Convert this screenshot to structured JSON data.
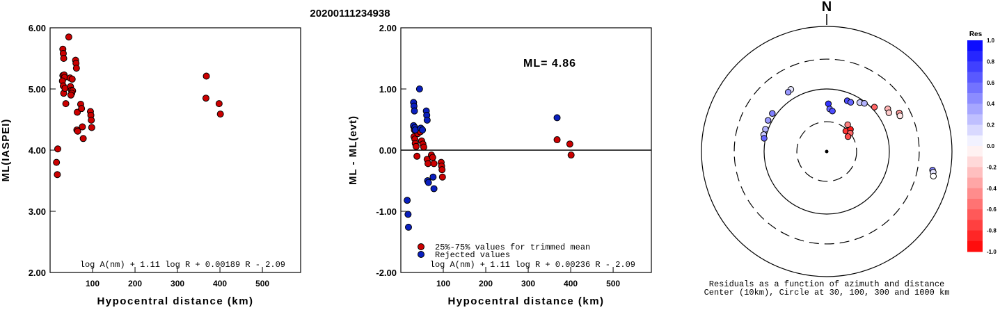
{
  "title": "20200111234938",
  "chart_data": [
    {
      "type": "scatter",
      "xlabel": "Hypocentral distance (km)",
      "ylabel": "ML(IASPEI)",
      "xlim": [
        0,
        590
      ],
      "ylim": [
        2.0,
        6.0
      ],
      "xticks": [
        "100",
        "200",
        "300",
        "400",
        "500"
      ],
      "xtick_values": [
        100,
        200,
        300,
        400,
        500
      ],
      "yticks": [
        "2.00",
        "3.00",
        "4.00",
        "5.00",
        "6.00"
      ],
      "ytick_values": [
        2.0,
        3.0,
        4.0,
        5.0,
        6.0
      ],
      "formula": "log A(nm) + 1.11 log R + 0.00189 R - 2.09",
      "marker_color": "#cc0000",
      "points": [
        [
          15,
          3.8
        ],
        [
          17,
          3.6
        ],
        [
          18,
          4.02
        ],
        [
          30,
          5.65
        ],
        [
          31,
          5.58
        ],
        [
          32,
          5.5
        ],
        [
          30,
          5.22
        ],
        [
          33,
          5.23
        ],
        [
          34,
          5.19
        ],
        [
          29,
          5.13
        ],
        [
          31,
          5.05
        ],
        [
          32,
          4.93
        ],
        [
          35,
          5.01
        ],
        [
          37,
          4.76
        ],
        [
          44,
          5.85
        ],
        [
          47,
          5.18
        ],
        [
          52,
          5.16
        ],
        [
          48,
          5.04
        ],
        [
          50,
          4.98
        ],
        [
          53,
          4.97
        ],
        [
          51,
          4.93
        ],
        [
          49,
          4.9
        ],
        [
          60,
          5.47
        ],
        [
          61,
          5.42
        ],
        [
          62,
          5.34
        ],
        [
          64,
          4.62
        ],
        [
          63,
          4.33
        ],
        [
          65,
          4.31
        ],
        [
          72,
          4.75
        ],
        [
          74,
          4.68
        ],
        [
          76,
          4.38
        ],
        [
          78,
          4.19
        ],
        [
          95,
          4.63
        ],
        [
          96,
          4.57
        ],
        [
          97,
          4.49
        ],
        [
          98,
          4.37
        ],
        [
          368,
          5.21
        ],
        [
          367,
          4.85
        ],
        [
          398,
          4.76
        ],
        [
          401,
          4.59
        ]
      ]
    },
    {
      "type": "scatter",
      "xlabel": "Hypocentral distance (km)",
      "ylabel": "ML - ML(evt)",
      "xlim": [
        0,
        590
      ],
      "ylim": [
        -2.0,
        2.0
      ],
      "xticks": [
        "100",
        "200",
        "300",
        "400",
        "500"
      ],
      "xtick_values": [
        100,
        200,
        300,
        400,
        500
      ],
      "yticks": [
        "-2.00",
        "-1.00",
        "0.00",
        "1.00",
        "2.00"
      ],
      "ytick_values": [
        -2.0,
        -1.0,
        0.0,
        1.0,
        2.0
      ],
      "zero_line": 0.0,
      "annotation": "ML= 4.86",
      "formula": "log A(nm) + 1.11 log R + 0.00236 R - 2.09",
      "legend": [
        {
          "label": "25%-75% values for trimmed mean",
          "color": "#cc0000"
        },
        {
          "label": "Rejected values",
          "color": "#0a1fbf"
        }
      ],
      "series": [
        {
          "color": "#cc0000",
          "points": [
            [
              30,
              0.39
            ],
            [
              32,
              0.33
            ],
            [
              31,
              0.22
            ],
            [
              33,
              0.18
            ],
            [
              34,
              0.11
            ],
            [
              36,
              0.06
            ],
            [
              38,
              -0.1
            ],
            [
              40,
              0.27
            ],
            [
              46,
              0.3
            ],
            [
              49,
              0.15
            ],
            [
              52,
              0.1
            ],
            [
              54,
              0.05
            ],
            [
              62,
              -0.15
            ],
            [
              64,
              -0.22
            ],
            [
              72,
              -0.08
            ],
            [
              75,
              -0.12
            ],
            [
              78,
              -0.22
            ],
            [
              95,
              -0.2
            ],
            [
              96,
              -0.26
            ],
            [
              97,
              -0.32
            ],
            [
              98,
              -0.44
            ],
            [
              368,
              0.17
            ],
            [
              398,
              0.1
            ],
            [
              401,
              -0.08
            ]
          ]
        },
        {
          "color": "#0a1fbf",
          "points": [
            [
              15,
              -0.82
            ],
            [
              17,
              -1.05
            ],
            [
              18,
              -1.26
            ],
            [
              30,
              0.78
            ],
            [
              31,
              0.72
            ],
            [
              32,
              0.64
            ],
            [
              30,
              0.4
            ],
            [
              33,
              0.37
            ],
            [
              34,
              0.33
            ],
            [
              44,
              1.0
            ],
            [
              47,
              0.36
            ],
            [
              51,
              0.33
            ],
            [
              60,
              0.64
            ],
            [
              61,
              0.57
            ],
            [
              62,
              0.49
            ],
            [
              63,
              -0.5
            ],
            [
              65,
              -0.53
            ],
            [
              76,
              -0.44
            ],
            [
              78,
              -0.63
            ],
            [
              368,
              0.53
            ]
          ]
        }
      ]
    },
    {
      "type": "scatter",
      "subtype": "polar-residuals",
      "north_label": "N",
      "caption_line1": "Residuals as a function of azimuth and distance",
      "caption_line2": "Center (10km), Circle at 30, 100, 300 and 1000 km",
      "colorbar_title": "Res",
      "colorbar_ticks": [
        "1.0",
        "0.8",
        "0.6",
        "0.4",
        "0.2",
        "0.0",
        "-0.2",
        "-0.4",
        "-0.6",
        "-0.8",
        "-1.0"
      ],
      "colorbar_values": [
        1.0,
        0.8,
        0.6,
        0.4,
        0.2,
        0.0,
        -0.2,
        -0.4,
        -0.6,
        -0.8,
        -1.0
      ],
      "circles_km": [
        30,
        100,
        300,
        1000
      ],
      "dashed_circles_km": [
        30,
        300
      ],
      "stations": [
        {
          "az": 43,
          "dist": 28,
          "res": -0.8
        },
        {
          "az": 47,
          "dist": 33,
          "res": -0.9
        },
        {
          "az": 52,
          "dist": 30,
          "res": -0.6
        },
        {
          "az": 55,
          "dist": 26,
          "res": -0.7
        },
        {
          "az": 38,
          "dist": 35,
          "res": -0.5
        },
        {
          "az": 2,
          "dist": 58,
          "res": 0.8
        },
        {
          "az": 4,
          "dist": 48,
          "res": 0.6
        },
        {
          "az": 8,
          "dist": 45,
          "res": 0.7
        },
        {
          "az": 22,
          "dist": 75,
          "res": 0.7
        },
        {
          "az": 26,
          "dist": 75,
          "res": 0.6
        },
        {
          "az": 34,
          "dist": 88,
          "res": 0.2
        },
        {
          "az": 38,
          "dist": 95,
          "res": 0.3
        },
        {
          "az": 47,
          "dist": 110,
          "res": -0.6
        },
        {
          "az": 55,
          "dist": 155,
          "res": -0.3
        },
        {
          "az": 58,
          "dist": 148,
          "res": -0.2
        },
        {
          "az": 62,
          "dist": 205,
          "res": -0.4
        },
        {
          "az": 64,
          "dist": 200,
          "res": -0.1
        },
        {
          "az": 330,
          "dist": 140,
          "res": 0.1
        },
        {
          "az": 327,
          "dist": 135,
          "res": 0.4
        },
        {
          "az": 305,
          "dist": 115,
          "res": 0.5
        },
        {
          "az": 298,
          "dist": 115,
          "res": 0.4
        },
        {
          "az": 290,
          "dist": 110,
          "res": 0.3
        },
        {
          "az": 285,
          "dist": 110,
          "res": 0.2
        },
        {
          "az": 282,
          "dist": 105,
          "res": 0.6
        },
        {
          "az": 100,
          "dist": 520,
          "res": 0.5
        },
        {
          "az": 101,
          "dist": 540,
          "res": 0.1
        },
        {
          "az": 103,
          "dist": 560,
          "res": 0.0
        }
      ]
    }
  ]
}
